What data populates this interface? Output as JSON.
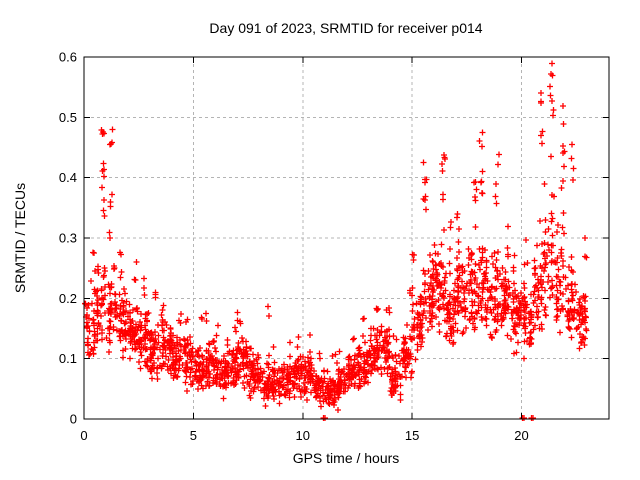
{
  "page": {
    "background": "#ffffff"
  },
  "chart_data": {
    "type": "scatter",
    "title": "Day 091 of 2023, SRMTID for receiver p014",
    "xlabel": "GPS time / hours",
    "ylabel": "SRMTID / TECUs",
    "xlim": [
      0,
      24
    ],
    "ylim": [
      0,
      0.6
    ],
    "xticks": [
      0,
      5,
      10,
      15,
      20
    ],
    "yticks": [
      0,
      0.1,
      0.2,
      0.3,
      0.4,
      0.5,
      0.6
    ],
    "ytick_labels": [
      "0",
      "0.1",
      "0.2",
      "0.3",
      "0.4",
      "0.5",
      "0.6"
    ],
    "grid": true,
    "legend": false,
    "marker": "plus",
    "marker_color": "#ff0000",
    "grid_color": "#b4b4b4",
    "axis_color": "#000000",
    "series_name": "SRMTID",
    "seed": 91,
    "bin_format": [
      "x_start_hours",
      "band_y_low",
      "band_y_high",
      "band_count",
      "tail_y_max",
      "tail_count"
    ],
    "bins": [
      [
        0.0,
        0.07,
        0.25,
        40,
        0.28,
        2
      ],
      [
        0.5,
        0.08,
        0.28,
        40,
        0.55,
        12
      ],
      [
        1.0,
        0.1,
        0.28,
        42,
        0.5,
        9
      ],
      [
        1.5,
        0.1,
        0.22,
        45,
        0.28,
        4
      ],
      [
        2.0,
        0.09,
        0.2,
        45,
        0.26,
        3
      ],
      [
        2.5,
        0.08,
        0.2,
        45,
        0.25,
        3
      ],
      [
        3.0,
        0.06,
        0.16,
        45,
        0.21,
        3
      ],
      [
        3.5,
        0.06,
        0.17,
        45,
        0.2,
        3
      ],
      [
        4.0,
        0.05,
        0.15,
        45,
        0.18,
        3
      ],
      [
        4.5,
        0.04,
        0.14,
        45,
        0.17,
        2
      ],
      [
        5.0,
        0.04,
        0.13,
        45,
        0.17,
        2
      ],
      [
        5.5,
        0.04,
        0.14,
        45,
        0.18,
        2
      ],
      [
        6.0,
        0.03,
        0.12,
        45,
        0.17,
        2
      ],
      [
        6.5,
        0.04,
        0.14,
        45,
        0.18,
        3
      ],
      [
        7.0,
        0.04,
        0.15,
        45,
        0.18,
        3
      ],
      [
        7.5,
        0.03,
        0.11,
        45,
        0.14,
        2
      ],
      [
        8.0,
        0.02,
        0.1,
        45,
        0.19,
        3
      ],
      [
        8.5,
        0.02,
        0.09,
        42,
        0.12,
        2
      ],
      [
        9.0,
        0.03,
        0.1,
        42,
        0.13,
        2
      ],
      [
        9.5,
        0.03,
        0.11,
        42,
        0.16,
        2
      ],
      [
        10.0,
        0.03,
        0.11,
        42,
        0.14,
        2
      ],
      [
        10.5,
        0.02,
        0.09,
        42,
        0.12,
        2
      ],
      [
        11.0,
        0.02,
        0.08,
        42,
        0.11,
        2
      ],
      [
        11.5,
        0.03,
        0.09,
        42,
        0.12,
        2
      ],
      [
        12.0,
        0.04,
        0.11,
        42,
        0.14,
        2
      ],
      [
        12.5,
        0.05,
        0.13,
        45,
        0.17,
        3
      ],
      [
        13.0,
        0.07,
        0.16,
        45,
        0.19,
        3
      ],
      [
        13.5,
        0.07,
        0.16,
        42,
        0.19,
        3
      ],
      [
        14.0,
        0.03,
        0.11,
        40,
        0.14,
        2
      ],
      [
        14.5,
        0.06,
        0.16,
        45,
        0.22,
        3
      ],
      [
        15.0,
        0.09,
        0.21,
        45,
        0.28,
        4
      ],
      [
        15.5,
        0.13,
        0.3,
        48,
        0.43,
        8
      ],
      [
        16.0,
        0.13,
        0.3,
        48,
        0.45,
        8
      ],
      [
        16.5,
        0.11,
        0.25,
        45,
        0.33,
        4
      ],
      [
        17.0,
        0.13,
        0.28,
        45,
        0.35,
        4
      ],
      [
        17.5,
        0.14,
        0.3,
        45,
        0.42,
        6
      ],
      [
        18.0,
        0.13,
        0.31,
        45,
        0.49,
        8
      ],
      [
        18.5,
        0.12,
        0.28,
        42,
        0.44,
        5
      ],
      [
        19.0,
        0.12,
        0.26,
        45,
        0.32,
        4
      ],
      [
        19.5,
        0.1,
        0.24,
        45,
        0.3,
        3
      ],
      [
        20.0,
        0.09,
        0.23,
        42,
        0.3,
        3
      ],
      [
        20.5,
        0.12,
        0.3,
        40,
        0.57,
        7
      ],
      [
        21.0,
        0.14,
        0.4,
        40,
        0.59,
        10
      ],
      [
        21.5,
        0.13,
        0.35,
        38,
        0.53,
        8
      ],
      [
        22.0,
        0.11,
        0.26,
        40,
        0.47,
        5
      ],
      [
        22.5,
        0.1,
        0.22,
        45,
        0.3,
        3
      ]
    ],
    "near_zero_points": [
      [
        10.95,
        0.002
      ],
      [
        11.02,
        0.002
      ],
      [
        11.6,
        0.015
      ],
      [
        20.05,
        0.002
      ],
      [
        20.12,
        0.002
      ],
      [
        20.45,
        0.002
      ],
      [
        20.52,
        0.002
      ]
    ]
  }
}
